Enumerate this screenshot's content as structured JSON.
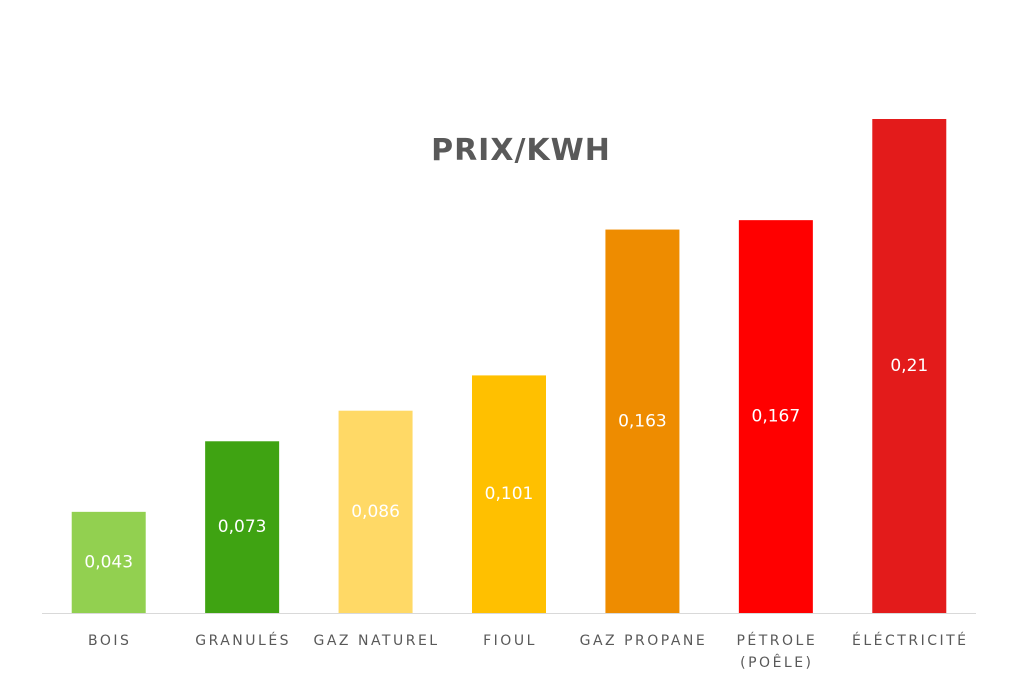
{
  "chart_data": {
    "type": "bar",
    "title": "PRIX/KWH",
    "categories": [
      "BOIS",
      "GRANULÉS",
      "GAZ NATUREL",
      "FIOUL",
      "GAZ PROPANE",
      "PÉTROLE (POÊLE)",
      "ÉLÉCTRICITÉ"
    ],
    "values": [
      0.043,
      0.073,
      0.086,
      0.101,
      0.163,
      0.167,
      0.21
    ],
    "value_labels": [
      "0,043",
      "0,073",
      "0,086",
      "0,101",
      "0,163",
      "0,167",
      "0,21"
    ],
    "colors": [
      "#92d050",
      "#3fa312",
      "#ffd966",
      "#ffc000",
      "#ee8c00",
      "#ff0000",
      "#e31b1b"
    ]
  }
}
